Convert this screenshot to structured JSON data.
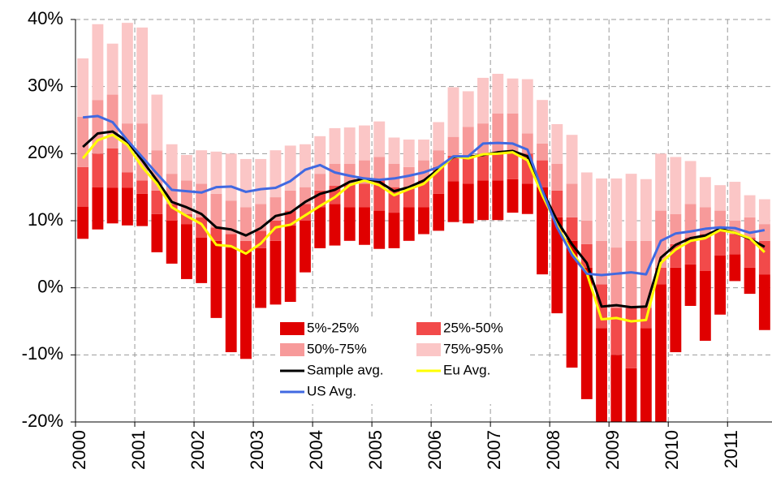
{
  "chart_data": {
    "type": "bar",
    "categories": [
      "2000",
      null,
      null,
      null,
      "2001",
      null,
      null,
      null,
      "2002",
      null,
      null,
      null,
      "2003",
      null,
      null,
      null,
      "2004",
      null,
      null,
      null,
      "2005",
      null,
      null,
      null,
      "2006",
      null,
      null,
      null,
      "2007",
      null,
      null,
      null,
      "2008",
      null,
      null,
      null,
      "2009",
      null,
      null,
      null,
      "2010",
      null,
      null,
      null,
      "2011",
      null,
      null
    ],
    "ylim": [
      -20,
      40
    ],
    "yticks": [
      {
        "value": -20,
        "label": "-20%"
      },
      {
        "value": -10,
        "label": "-10%"
      },
      {
        "value": 0,
        "label": "0%"
      },
      {
        "value": 10,
        "label": "10%"
      },
      {
        "value": 20,
        "label": "20%"
      },
      {
        "value": 30,
        "label": "30%"
      },
      {
        "value": 40,
        "label": "40%"
      }
    ],
    "grid": true,
    "legend": "bottom-center",
    "series": [
      {
        "name": "5%-25%",
        "type": "range-bar",
        "color": "#e00000",
        "values": [
          [
            7.3,
            12.1
          ],
          [
            8.7,
            15.0
          ],
          [
            9.6,
            14.9
          ],
          [
            9.3,
            14.9
          ],
          [
            9.2,
            14.0
          ],
          [
            5.3,
            11.0
          ],
          [
            3.6,
            10.0
          ],
          [
            1.3,
            9.5
          ],
          [
            0.7,
            7.5
          ],
          [
            -4.5,
            7.0
          ],
          [
            -9.6,
            6.0
          ],
          [
            -10.6,
            5.6
          ],
          [
            -3.0,
            5.9
          ],
          [
            -2.5,
            7.0
          ],
          [
            -2.1,
            9.3
          ],
          [
            2.3,
            10.0
          ],
          [
            5.9,
            12.0
          ],
          [
            6.3,
            12.5
          ],
          [
            7.0,
            12.0
          ],
          [
            6.4,
            12.0
          ],
          [
            5.8,
            11.5
          ],
          [
            5.9,
            11.2
          ],
          [
            7.0,
            12.0
          ],
          [
            8.0,
            12.0
          ],
          [
            8.5,
            14.0
          ],
          [
            9.8,
            15.9
          ],
          [
            9.6,
            15.5
          ],
          [
            10.1,
            16.0
          ],
          [
            10.1,
            16.0
          ],
          [
            11.2,
            16.2
          ],
          [
            11.0,
            15.5
          ],
          [
            2.0,
            15.0
          ],
          [
            -3.8,
            10.5
          ],
          [
            -11.9,
            7.0
          ],
          [
            -16.6,
            3.0
          ],
          [
            -20,
            -6.0
          ],
          [
            -20,
            -10
          ],
          [
            -20,
            -12
          ],
          [
            -20,
            -6
          ],
          [
            -20,
            0.5
          ],
          [
            -9.6,
            3.0
          ],
          [
            -2.7,
            3.5
          ],
          [
            -7.9,
            2.5
          ],
          [
            -4.0,
            4.8
          ],
          [
            1.0,
            5.0
          ],
          [
            -0.9,
            3.0
          ],
          [
            -6.3,
            2.0
          ]
        ]
      },
      {
        "name": "25%-50%",
        "type": "range-bar",
        "color": "#f24a4a",
        "values": [
          [
            12.1,
            18.0
          ],
          [
            15.0,
            20.0
          ],
          [
            14.9,
            20.8
          ],
          [
            14.9,
            17.2
          ],
          [
            14.0,
            16.0
          ],
          [
            11.0,
            14.5
          ],
          [
            10.0,
            12.5
          ],
          [
            9.5,
            11.0
          ],
          [
            7.5,
            10.5
          ],
          [
            7.0,
            9.0
          ],
          [
            6.0,
            8.0
          ],
          [
            5.6,
            7.0
          ],
          [
            5.9,
            8.5
          ],
          [
            7.0,
            10.0
          ],
          [
            9.3,
            11.5
          ],
          [
            10.0,
            12.5
          ],
          [
            12.0,
            14.5
          ],
          [
            12.5,
            15.2
          ],
          [
            12.0,
            15.5
          ],
          [
            12.0,
            15.5
          ],
          [
            11.5,
            16.0
          ],
          [
            11.2,
            15.0
          ],
          [
            12.0,
            15.0
          ],
          [
            12.0,
            16.0
          ],
          [
            14.0,
            18.0
          ],
          [
            15.9,
            19.7
          ],
          [
            15.5,
            19.5
          ],
          [
            16.0,
            20.0
          ],
          [
            16.0,
            20.2
          ],
          [
            16.2,
            20.3
          ],
          [
            15.5,
            20.0
          ],
          [
            15.0,
            19.0
          ],
          [
            10.5,
            14.5
          ],
          [
            7.0,
            10.5
          ],
          [
            3.0,
            6.5
          ],
          [
            -6.0,
            0.5
          ],
          [
            -10,
            -3
          ],
          [
            -12,
            -3
          ],
          [
            -6,
            -3
          ],
          [
            0.5,
            3.0
          ],
          [
            3.0,
            6.5
          ],
          [
            3.5,
            7.5
          ],
          [
            2.5,
            8.0
          ],
          [
            4.8,
            8.5
          ],
          [
            5.0,
            8.0
          ],
          [
            3.0,
            7.5
          ],
          [
            2.0,
            7.0
          ]
        ]
      },
      {
        "name": "50%-75%",
        "type": "range-bar",
        "color": "#f79a9a",
        "values": [
          [
            18.0,
            25.5
          ],
          [
            20.0,
            28.0
          ],
          [
            20.8,
            28.8
          ],
          [
            17.2,
            24.5
          ],
          [
            16.0,
            24.5
          ],
          [
            14.5,
            20.5
          ],
          [
            12.5,
            17.0
          ],
          [
            11.0,
            16.0
          ],
          [
            10.5,
            15.5
          ],
          [
            9.0,
            14.0
          ],
          [
            8.0,
            13.0
          ],
          [
            7.0,
            12.0
          ],
          [
            8.5,
            12.5
          ],
          [
            10.0,
            13.5
          ],
          [
            11.5,
            14.5
          ],
          [
            12.5,
            15.0
          ],
          [
            14.5,
            17.0
          ],
          [
            15.2,
            18.5
          ],
          [
            15.5,
            18.5
          ],
          [
            15.5,
            19.0
          ],
          [
            16.0,
            19.5
          ],
          [
            15.0,
            18.5
          ],
          [
            15.0,
            18.0
          ],
          [
            16.0,
            19.0
          ],
          [
            18.0,
            20.5
          ],
          [
            19.7,
            22.5
          ],
          [
            19.5,
            24.0
          ],
          [
            20.0,
            24.5
          ],
          [
            20.2,
            26.0
          ],
          [
            20.3,
            26.0
          ],
          [
            20.0,
            23.0
          ],
          [
            19.0,
            21.5
          ],
          [
            14.5,
            18.5
          ],
          [
            10.5,
            15.5
          ],
          [
            6.5,
            10.0
          ],
          [
            0.5,
            7.0
          ],
          [
            -3,
            6.0
          ],
          [
            -3,
            7.0
          ],
          [
            -3,
            7.0
          ],
          [
            3.0,
            11.5
          ],
          [
            6.5,
            11.0
          ],
          [
            7.5,
            12.5
          ],
          [
            8.0,
            12.0
          ],
          [
            8.5,
            11.5
          ],
          [
            8.0,
            10.0
          ],
          [
            7.5,
            10.5
          ],
          [
            7.0,
            9.5
          ]
        ]
      },
      {
        "name": "75%-95%",
        "type": "range-bar",
        "color": "#fbc6c6",
        "values": [
          [
            25.5,
            34.2
          ],
          [
            28.0,
            39.3
          ],
          [
            28.8,
            36.4
          ],
          [
            24.5,
            39.5
          ],
          [
            24.5,
            38.8
          ],
          [
            20.5,
            28.8
          ],
          [
            17.0,
            21.4
          ],
          [
            16.0,
            19.8
          ],
          [
            15.5,
            20.5
          ],
          [
            14.0,
            20.3
          ],
          [
            13.0,
            20.0
          ],
          [
            12.0,
            19.2
          ],
          [
            12.5,
            19.2
          ],
          [
            13.5,
            20.5
          ],
          [
            14.5,
            21.2
          ],
          [
            15.0,
            21.4
          ],
          [
            17.0,
            22.6
          ],
          [
            18.5,
            23.8
          ],
          [
            18.5,
            23.9
          ],
          [
            19.0,
            24.2
          ],
          [
            19.5,
            24.8
          ],
          [
            18.5,
            22.4
          ],
          [
            18.0,
            22.1
          ],
          [
            19.0,
            22.1
          ],
          [
            20.5,
            24.7
          ],
          [
            22.5,
            29.9
          ],
          [
            24.0,
            29.3
          ],
          [
            24.5,
            31.3
          ],
          [
            26.0,
            31.9
          ],
          [
            26.0,
            31.2
          ],
          [
            23.0,
            31.1
          ],
          [
            21.5,
            28.0
          ],
          [
            18.5,
            24.4
          ],
          [
            15.5,
            22.8
          ],
          [
            10.0,
            17.2
          ],
          [
            7.0,
            16.3
          ],
          [
            6.0,
            16.3
          ],
          [
            7.0,
            17.0
          ],
          [
            7.0,
            16.2
          ],
          [
            11.5,
            20.0
          ],
          [
            11.0,
            19.5
          ],
          [
            12.5,
            18.9
          ],
          [
            12.0,
            16.5
          ],
          [
            11.5,
            15.3
          ],
          [
            10.0,
            15.8
          ],
          [
            10.5,
            13.8
          ],
          [
            9.5,
            13.2
          ]
        ]
      },
      {
        "name": "Sample avg.",
        "type": "line",
        "color": "#000000",
        "values": [
          21.0,
          23.0,
          23.3,
          21.8,
          19.0,
          16.0,
          12.8,
          12.0,
          11.0,
          9.0,
          8.7,
          7.8,
          8.9,
          10.7,
          11.2,
          12.8,
          14.0,
          14.6,
          15.8,
          16.3,
          15.8,
          14.4,
          15.0,
          16.0,
          17.7,
          19.5,
          19.5,
          19.8,
          20.2,
          20.4,
          19.6,
          14.5,
          10.0,
          6.5,
          3.7,
          -2.8,
          -2.6,
          -2.9,
          -2.8,
          4.5,
          6.4,
          7.4,
          7.8,
          8.8,
          8.2,
          7.3,
          6.1
        ]
      },
      {
        "name": "Eu Avg.",
        "type": "line",
        "color": "#ffff00",
        "values": [
          19.3,
          22.0,
          22.8,
          21.3,
          18.0,
          15.5,
          12.0,
          10.7,
          9.5,
          6.4,
          6.2,
          5.1,
          6.6,
          9.0,
          9.4,
          10.8,
          12.2,
          13.5,
          15.3,
          16.0,
          15.3,
          13.8,
          14.7,
          15.5,
          17.5,
          19.6,
          19.3,
          19.9,
          20.0,
          20.2,
          19.0,
          13.8,
          9.3,
          5.3,
          2.2,
          -4.7,
          -4.5,
          -5.0,
          -4.8,
          3.7,
          5.7,
          7.0,
          7.4,
          8.6,
          8.2,
          7.4,
          5.3
        ]
      },
      {
        "name": "US Avg.",
        "type": "line",
        "color": "#4169e1",
        "values": [
          25.4,
          25.6,
          24.7,
          22.0,
          19.5,
          17.0,
          14.6,
          14.4,
          14.2,
          15.0,
          15.1,
          14.3,
          14.7,
          14.9,
          15.9,
          17.6,
          18.3,
          17.2,
          16.7,
          16.3,
          16.1,
          16.3,
          16.7,
          17.2,
          18.0,
          19.6,
          19.6,
          21.5,
          21.6,
          21.5,
          20.6,
          14.5,
          9.0,
          4.9,
          2.1,
          1.9,
          2.1,
          2.3,
          2.0,
          7.0,
          8.1,
          8.4,
          8.8,
          9.0,
          8.9,
          8.2,
          8.6
        ]
      }
    ]
  }
}
